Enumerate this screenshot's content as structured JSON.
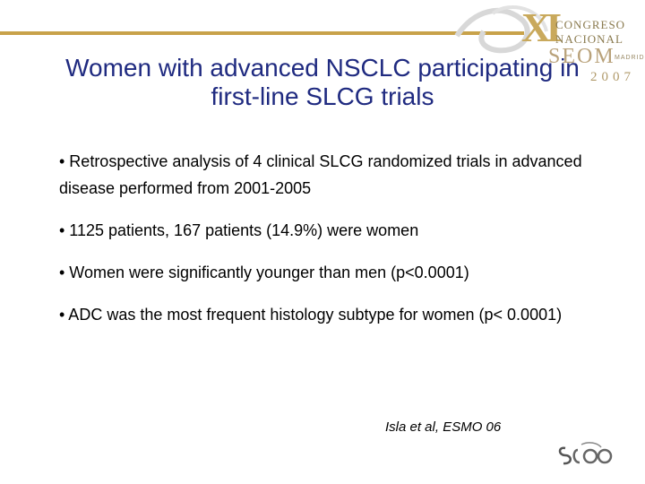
{
  "slide": {
    "title_line1": "Women with advanced NSCLC participating in",
    "title_line2": "first-line SLCG trials",
    "bullets": [
      "• Retrospective analysis of 4 clinical SLCG randomized trials in advanced disease performed from 2001-2005",
      "• 1125 patients, 167 patients (14.9%) were women",
      "• Women were significantly younger than men (p<0.0001)",
      "• ADC was the most frequent histology subtype for women (p< 0.0001)"
    ],
    "citation": "Isla et al, ESMO 06"
  },
  "logo": {
    "numeral": "XI",
    "congreso": "CONGRESO",
    "nacional": "NACIONAL",
    "seom": "SEOM",
    "city": "MADRID",
    "year": "2007"
  },
  "colors": {
    "title": "#1f2a80",
    "accent": "#c8a24a"
  }
}
